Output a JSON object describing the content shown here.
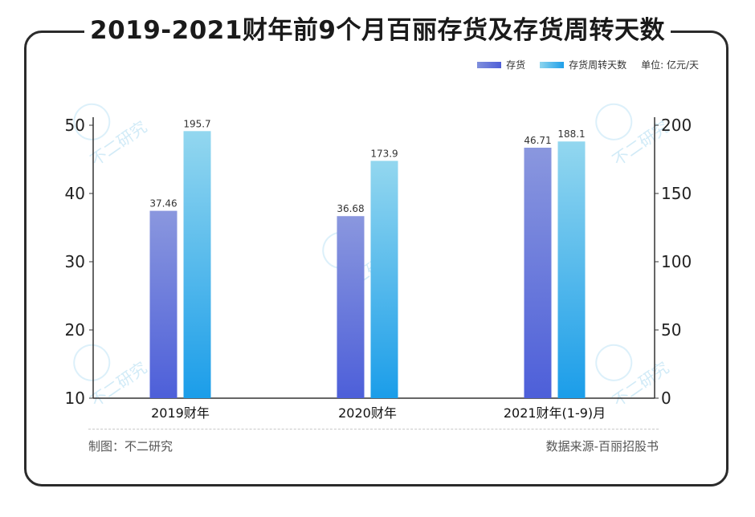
{
  "title": "2019-2021财年前9个月百丽存货及存货周转天数",
  "legend": {
    "inventory_label": "存货",
    "turnover_label": "存货周转天数",
    "unit_label": "单位: 亿元/天"
  },
  "footer": {
    "author": "制图：不二研究",
    "source": "数据来源-百丽招股书"
  },
  "watermark_text": "不二研究",
  "colors": {
    "inventory_top": "#7f8fdc",
    "inventory_bottom": "#4f5fd8",
    "turnover_top": "#8dd5ee",
    "turnover_bottom": "#1e9fe9"
  },
  "chart_data": {
    "type": "bar",
    "categories": [
      "2019财年",
      "2020财年",
      "2021财年(1-9)月"
    ],
    "series": [
      {
        "name": "存货",
        "axis": "left",
        "values": [
          37.46,
          36.68,
          46.71
        ],
        "labels": [
          "37.46",
          "36.68",
          "46.71"
        ]
      },
      {
        "name": "存货周转天数",
        "axis": "right",
        "values": [
          195.7,
          173.9,
          188.1
        ],
        "labels": [
          "195.7",
          "173.9",
          "188.1"
        ]
      }
    ],
    "left_axis": {
      "ylim": [
        10,
        50
      ],
      "ticks": [
        "10",
        "20",
        "30",
        "40",
        "50"
      ]
    },
    "right_axis": {
      "ylim": [
        0,
        200
      ],
      "ticks": [
        "0",
        "50",
        "100",
        "150",
        "200"
      ]
    },
    "grid": false,
    "legend_position": "top-right"
  }
}
